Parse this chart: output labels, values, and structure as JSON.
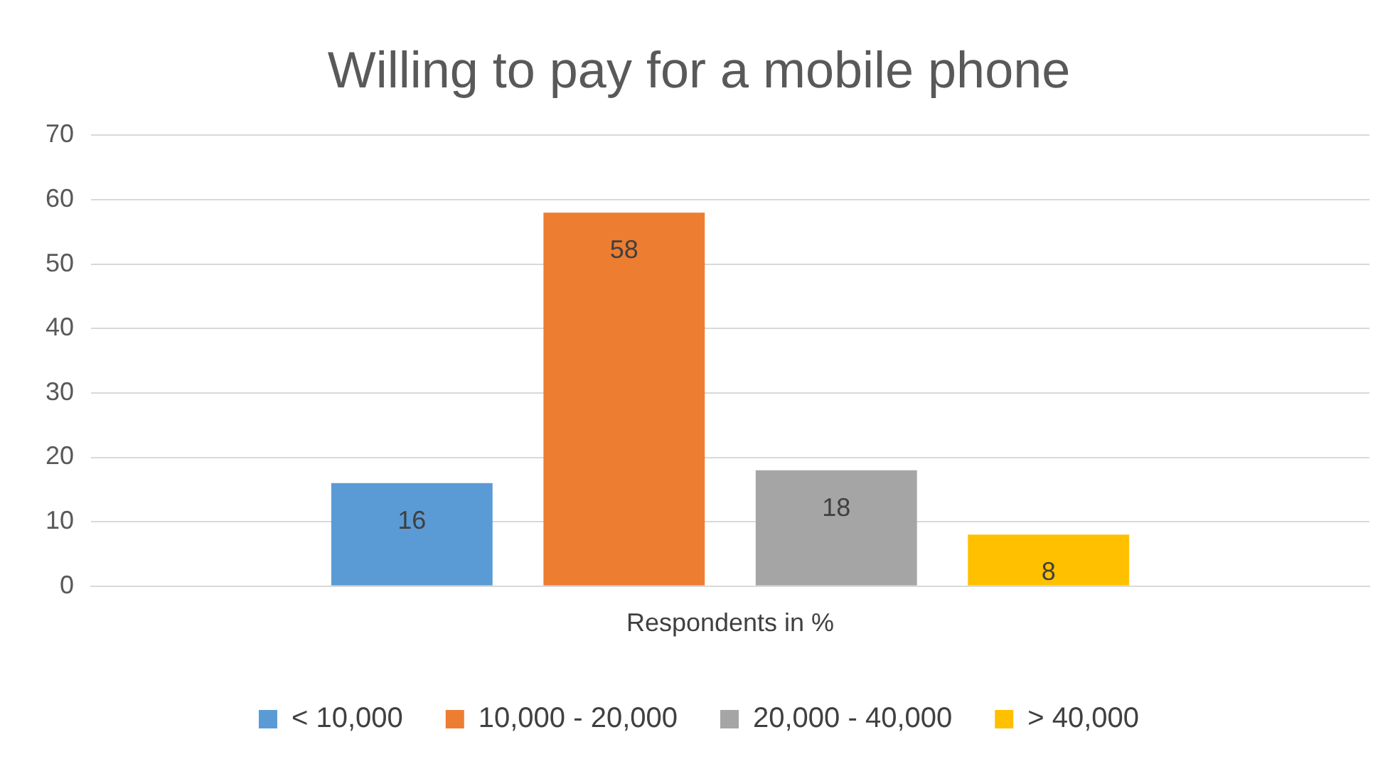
{
  "chart_data": {
    "type": "bar",
    "title": "Willing to pay for a mobile phone",
    "categories": [
      "Respondents in %"
    ],
    "series": [
      {
        "name": "< 10,000",
        "color": "#5b9bd5",
        "values": [
          16
        ]
      },
      {
        "name": "10,000 - 20,000",
        "color": "#ed7d31",
        "values": [
          58
        ]
      },
      {
        "name": "20,000 - 40,000",
        "color": "#a5a5a5",
        "values": [
          18
        ]
      },
      {
        "name": "> 40,000",
        "color": "#ffc000",
        "values": [
          8
        ]
      }
    ],
    "ylim": [
      0,
      70
    ],
    "yticks": [
      0,
      10,
      20,
      30,
      40,
      50,
      60,
      70
    ],
    "grid": "y",
    "legend": "bottom",
    "data_labels": true
  }
}
